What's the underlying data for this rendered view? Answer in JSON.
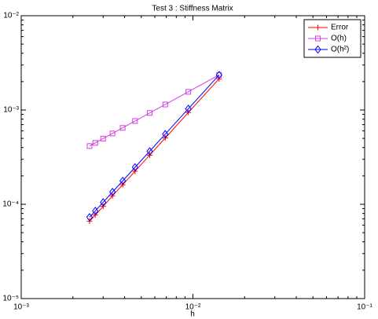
{
  "chart_data": {
    "type": "line",
    "title": "Test 3 : Stiffness Matrix",
    "x_label": "h",
    "x": [
      0.0025,
      0.0027,
      0.003,
      0.0034,
      0.0039,
      0.0046,
      0.0056,
      0.0069,
      0.0094,
      0.0142
    ],
    "series": [
      {
        "name": "Error",
        "color": "#ff0000",
        "marker": "plus",
        "values": [
          6.6e-05,
          7.7e-05,
          9.5e-05,
          0.000123,
          0.000161,
          0.000224,
          0.000332,
          0.000505,
          0.00094,
          0.00214
        ]
      },
      {
        "name": "O(h)",
        "color": "#d040e0",
        "marker": "square",
        "values": [
          0.000415,
          0.000448,
          0.000498,
          0.000564,
          0.000647,
          0.000764,
          0.00093,
          0.001145,
          0.00156,
          0.00236
        ]
      },
      {
        "name": "O(h²)",
        "color": "#0000ff",
        "marker": "diamond",
        "values": [
          7.3e-05,
          8.5e-05,
          0.000105,
          0.000135,
          0.000177,
          0.000247,
          0.000365,
          0.000555,
          0.00103,
          0.00235
        ]
      }
    ],
    "xscale": "log",
    "yscale": "log",
    "xlim": [
      0.001,
      0.1
    ],
    "ylim": [
      1e-05,
      0.01
    ],
    "xticks": [
      {
        "value": 0.001,
        "label": "10⁻³"
      },
      {
        "value": 0.01,
        "label": "10⁻²"
      },
      {
        "value": 0.1,
        "label": "10⁻¹"
      }
    ],
    "yticks": [
      {
        "value": 1e-05,
        "label": "10⁻⁵"
      },
      {
        "value": 0.0001,
        "label": "10⁻⁴"
      },
      {
        "value": 0.001,
        "label": "10⁻³"
      },
      {
        "value": 0.01,
        "label": "10⁻²"
      }
    ],
    "grid": false,
    "legend": "upper right"
  }
}
